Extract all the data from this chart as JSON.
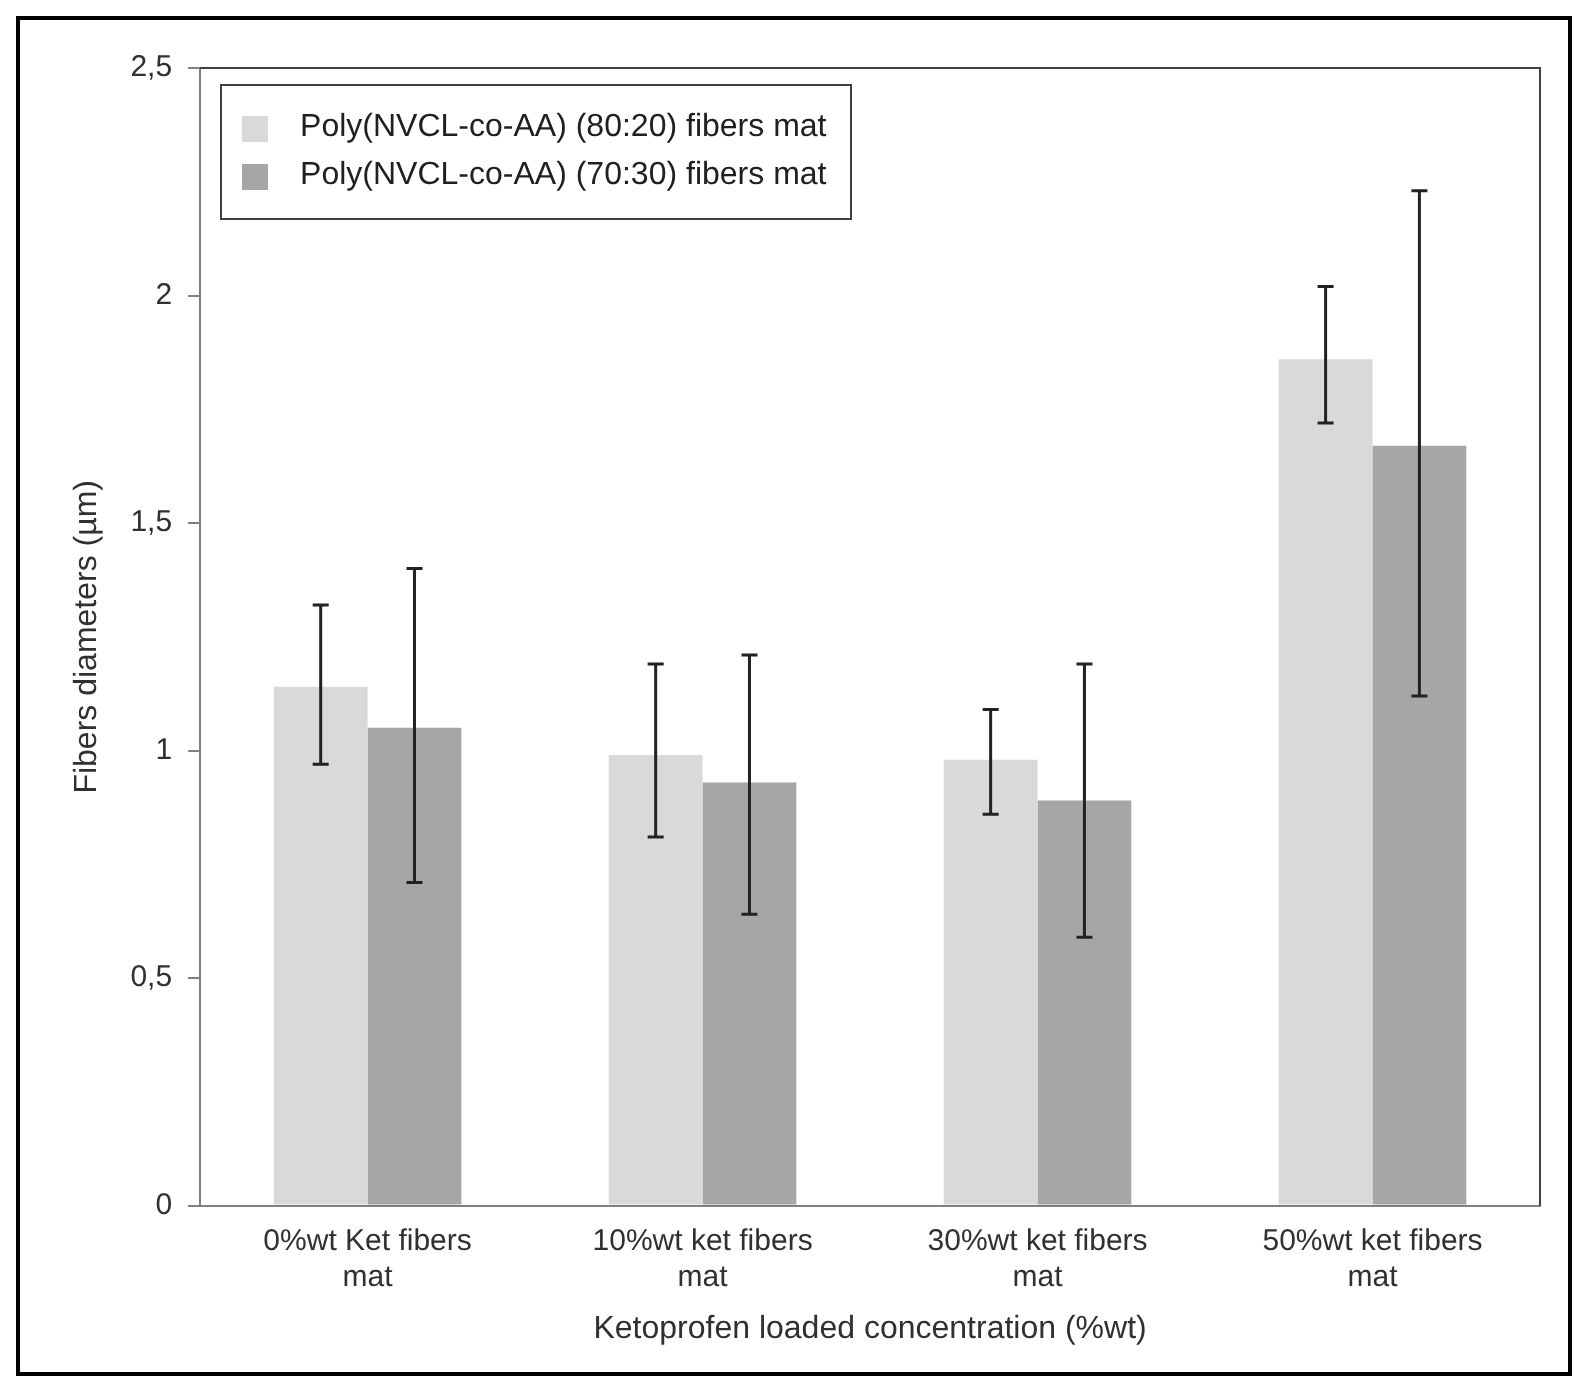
{
  "chart_data": {
    "type": "bar",
    "xlabel": "Ketoprofen loaded concentration (%wt)",
    "ylabel": "Fibers diameters (µm)",
    "categories": [
      "0%wt Ket fibers mat",
      "10%wt ket fibers mat",
      "30%wt ket fibers mat",
      "50%wt ket fibers mat"
    ],
    "series": [
      {
        "name": "Poly(NVCL-co-AA) (80:20) fibers mat",
        "color": "#d9d9d9",
        "values": [
          1.14,
          0.99,
          0.98,
          1.86
        ],
        "errors": [
          [
            0.97,
            1.32
          ],
          [
            0.81,
            1.19
          ],
          [
            0.86,
            1.09
          ],
          [
            1.72,
            2.02
          ]
        ]
      },
      {
        "name": "Poly(NVCL-co-AA) (70:30) fibers mat",
        "color": "#a6a6a6",
        "values": [
          1.05,
          0.93,
          0.89,
          1.67
        ],
        "errors": [
          [
            0.71,
            1.4
          ],
          [
            0.64,
            1.21
          ],
          [
            0.59,
            1.19
          ],
          [
            1.12,
            2.23
          ]
        ]
      }
    ],
    "ylim": [
      0,
      2.5
    ],
    "yticks": [
      0,
      {
        "value": 0.5,
        "label": "0,5"
      },
      {
        "value": 1,
        "label": "1"
      },
      {
        "value": 1.5,
        "label": "1,5"
      },
      {
        "value": 2,
        "label": "2"
      },
      {
        "value": 2.5,
        "label": "2,5"
      }
    ],
    "grid": false,
    "legend": "top left"
  }
}
